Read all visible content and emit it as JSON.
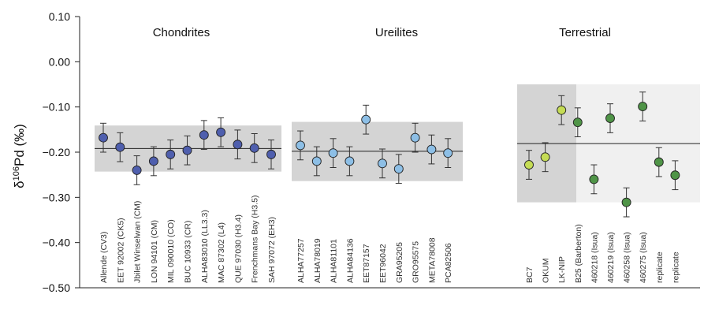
{
  "chart_data": {
    "type": "scatter",
    "ylabel_main": "δ",
    "ylabel_sup": "106",
    "ylabel_rest": "Pd (‰)",
    "ylim": [
      -0.5,
      0.1
    ],
    "yticks": [
      "0.10",
      "0.00",
      "−0.10",
      "−0.20",
      "−0.30",
      "−0.40",
      "−0.50"
    ],
    "grid": false,
    "colors": {
      "chondrite": "#4f5fae",
      "ureilite": "#8dbfe6",
      "terrestrial_light": "#c5dc55",
      "terrestrial_dark": "#4f9447",
      "band_dark": "#d4d4d4",
      "band_light": "#f0f0f0"
    },
    "groups": [
      {
        "title": "Chondrites",
        "mean": -0.192,
        "band": [
          -0.243,
          -0.141
        ],
        "color": "chondrite",
        "samples": [
          {
            "label": "Allende (CV3)",
            "value": -0.168,
            "err": 0.032
          },
          {
            "label": "EET 92002 (CK5)",
            "value": -0.189,
            "err": 0.032
          },
          {
            "label": "Jbilet Winselwan (CM)",
            "value": -0.24,
            "err": 0.032
          },
          {
            "label": "LON 94101 (CM)",
            "value": -0.22,
            "err": 0.032
          },
          {
            "label": "MIL 090010 (CO)",
            "value": -0.205,
            "err": 0.032
          },
          {
            "label": "BUC 10933 (CR)",
            "value": -0.196,
            "err": 0.032
          },
          {
            "label": "ALHA83010 (LL3.3)",
            "value": -0.162,
            "err": 0.032
          },
          {
            "label": "MAC 87302 (L4)",
            "value": -0.156,
            "err": 0.032
          },
          {
            "label": "QUE 97030 (H3.4)",
            "value": -0.183,
            "err": 0.032
          },
          {
            "label": "Frenchmans Bay (H3.5)",
            "value": -0.191,
            "err": 0.032
          },
          {
            "label": "SAH 97072 (EH3)",
            "value": -0.205,
            "err": 0.032
          }
        ]
      },
      {
        "title": "Ureilites",
        "mean": -0.198,
        "band": [
          -0.264,
          -0.133
        ],
        "color": "ureilite",
        "samples": [
          {
            "label": "ALHA77257",
            "value": -0.185,
            "err": 0.032
          },
          {
            "label": "ALHA78019",
            "value": -0.22,
            "err": 0.032
          },
          {
            "label": "ALHA81101",
            "value": -0.202,
            "err": 0.032
          },
          {
            "label": "ALHA84136",
            "value": -0.22,
            "err": 0.032
          },
          {
            "label": "EET87157",
            "value": -0.128,
            "err": 0.032
          },
          {
            "label": "EET96042",
            "value": -0.225,
            "err": 0.032
          },
          {
            "label": "GRA95205",
            "value": -0.237,
            "err": 0.032
          },
          {
            "label": "GRO95575",
            "value": -0.168,
            "err": 0.032
          },
          {
            "label": "META78008",
            "value": -0.194,
            "err": 0.032
          },
          {
            "label": "PCA82506",
            "value": -0.202,
            "err": 0.032
          }
        ]
      },
      {
        "title": "Terrestrial",
        "mean": -0.181,
        "band": [
          -0.311,
          -0.05
        ],
        "light_band": [
          -0.311,
          -0.05
        ],
        "samples": [
          {
            "label": "BC7",
            "value": -0.228,
            "err": 0.032,
            "color": "terrestrial_light"
          },
          {
            "label": "OKUM",
            "value": -0.211,
            "err": 0.032,
            "color": "terrestrial_light"
          },
          {
            "label": "LK-NIP",
            "value": -0.107,
            "err": 0.032,
            "color": "terrestrial_light"
          },
          {
            "label": "B25 (Barberton)",
            "value": -0.134,
            "err": 0.032,
            "color": "terrestrial_dark"
          },
          {
            "label": "460218 (Isua)",
            "value": -0.26,
            "err": 0.032,
            "color": "terrestrial_dark"
          },
          {
            "label": "460219 (Isua)",
            "value": -0.125,
            "err": 0.032,
            "color": "terrestrial_dark"
          },
          {
            "label": "460258 (Isua)",
            "value": -0.311,
            "err": 0.032,
            "color": "terrestrial_dark"
          },
          {
            "label": "460275 (Isua)",
            "value": -0.099,
            "err": 0.032,
            "color": "terrestrial_dark"
          },
          {
            "label": "replicate",
            "value": -0.222,
            "err": 0.032,
            "color": "terrestrial_dark"
          },
          {
            "label": "replicate",
            "value": -0.251,
            "err": 0.032,
            "color": "terrestrial_dark"
          }
        ]
      }
    ]
  }
}
